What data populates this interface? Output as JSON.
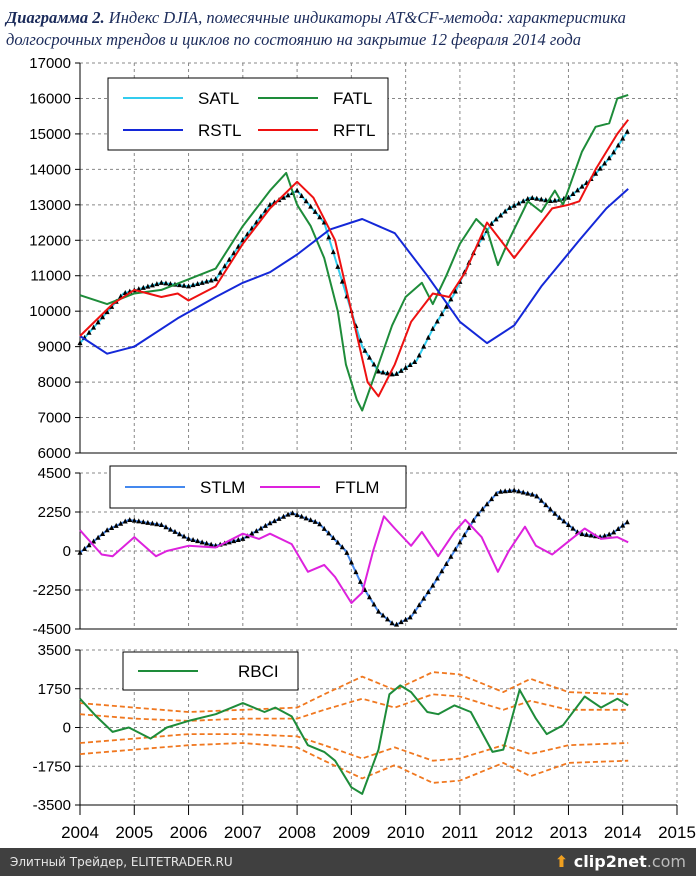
{
  "title": {
    "bold": "Диаграмма 2.",
    "text": " Индекс DJIA, помесячные индикаторы AT&CF-метода: характеристика долгосрочных трендов и циклов по состоянию на закрытие 12 февраля 2014 года"
  },
  "footer": {
    "left": "Элитный Трейдер, ELITETRADER.RU",
    "logo": "clip2net",
    "logo_suffix": ".com"
  },
  "chart_data": [
    {
      "type": "line",
      "xlim": [
        2004,
        2015
      ],
      "ylim": [
        6000,
        17000
      ],
      "yticks": [
        "17000",
        "16000",
        "15000",
        "14000",
        "13000",
        "12000",
        "11000",
        "10000",
        "9000",
        "8000",
        "7000",
        "6000"
      ],
      "grid": true,
      "legend": "top-left",
      "series": [
        {
          "name": "SATL",
          "color": "#33ccee",
          "markers": "triangle",
          "x": [
            2004,
            2004.8,
            2005.5,
            2006,
            2006.5,
            2007,
            2007.5,
            2008,
            2008.5,
            2008.9,
            2009.2,
            2009.5,
            2009.8,
            2010.2,
            2010.5,
            2010.9,
            2011.3,
            2011.6,
            2011.9,
            2012.3,
            2012.7,
            2013,
            2013.4,
            2013.8,
            2014.1
          ],
          "y": [
            9100,
            10500,
            10800,
            10700,
            10900,
            12000,
            13000,
            13400,
            12500,
            10500,
            9000,
            8300,
            8200,
            8600,
            9500,
            10500,
            11800,
            12500,
            12900,
            13200,
            13100,
            13200,
            13700,
            14400,
            15100
          ]
        },
        {
          "name": "FATL",
          "color": "#1e8c3a",
          "x": [
            2004,
            2004.5,
            2005,
            2005.5,
            2006,
            2006.5,
            2007,
            2007.5,
            2007.8,
            2008,
            2008.25,
            2008.5,
            2008.75,
            2008.9,
            2009.1,
            2009.2,
            2009.5,
            2009.75,
            2010,
            2010.3,
            2010.5,
            2010.75,
            2011,
            2011.3,
            2011.5,
            2011.7,
            2011.9,
            2012.25,
            2012.5,
            2012.75,
            2012.9,
            2013.25,
            2013.5,
            2013.75,
            2013.9,
            2014.1
          ],
          "y": [
            10450,
            10200,
            10500,
            10600,
            10900,
            11200,
            12400,
            13400,
            13900,
            13000,
            12400,
            11500,
            10000,
            8500,
            7500,
            7200,
            8500,
            9600,
            10400,
            10800,
            10200,
            11000,
            11900,
            12600,
            12300,
            11300,
            12000,
            13100,
            12800,
            13400,
            13000,
            14500,
            15200,
            15300,
            16000,
            16100
          ]
        },
        {
          "name": "RSTL",
          "color": "#1428d8",
          "x": [
            2004,
            2004.5,
            2005,
            2005.8,
            2006.5,
            2007,
            2007.5,
            2008,
            2008.6,
            2009.2,
            2009.8,
            2010.4,
            2011,
            2011.5,
            2012,
            2012.5,
            2013.2,
            2013.7,
            2014.1
          ],
          "y": [
            9300,
            8800,
            9000,
            9800,
            10400,
            10800,
            11100,
            11600,
            12300,
            12600,
            12200,
            11000,
            9700,
            9100,
            9600,
            10700,
            12000,
            12900,
            13450
          ]
        },
        {
          "name": "RFTL",
          "color": "#ee1111",
          "x": [
            2004,
            2004.6,
            2005,
            2005.5,
            2005.8,
            2006,
            2006.5,
            2007,
            2007.5,
            2008,
            2008.3,
            2008.7,
            2009,
            2009.3,
            2009.5,
            2009.8,
            2010.1,
            2010.5,
            2010.8,
            2011.1,
            2011.5,
            2011.9,
            2012,
            2012.4,
            2012.7,
            2013,
            2013.2,
            2013.5,
            2013.9,
            2014.1
          ],
          "y": [
            9300,
            10200,
            10600,
            10400,
            10500,
            10300,
            10700,
            11900,
            12900,
            13650,
            13200,
            12000,
            10000,
            8000,
            7600,
            8500,
            9700,
            10500,
            10400,
            11100,
            12500,
            11700,
            11500,
            12300,
            12900,
            13000,
            13100,
            14000,
            15000,
            15400
          ]
        }
      ]
    },
    {
      "type": "line",
      "xlim": [
        2004,
        2015
      ],
      "ylim": [
        -4500,
        4500
      ],
      "yticks": [
        "4500",
        "2250",
        "0",
        "-2250",
        "-4500"
      ],
      "grid": true,
      "legend": "top",
      "series": [
        {
          "name": "STLM",
          "color": "#4488ee",
          "markers": "triangle",
          "x": [
            2004,
            2004.5,
            2004.9,
            2005.5,
            2006,
            2006.5,
            2007,
            2007.5,
            2007.9,
            2008.4,
            2008.9,
            2009.2,
            2009.5,
            2009.8,
            2010.1,
            2010.5,
            2010.9,
            2011.3,
            2011.7,
            2012,
            2012.4,
            2012.8,
            2013.2,
            2013.6,
            2013.8,
            2014.1
          ],
          "y": [
            -100,
            1200,
            1800,
            1500,
            700,
            300,
            700,
            1600,
            2200,
            1600,
            0,
            -2000,
            -3500,
            -4300,
            -3800,
            -2000,
            0,
            2000,
            3400,
            3500,
            3200,
            2000,
            1000,
            800,
            1000,
            1700
          ]
        },
        {
          "name": "FTLM",
          "color": "#dd22dd",
          "x": [
            2004,
            2004.4,
            2004.6,
            2005,
            2005.4,
            2005.6,
            2006,
            2006.5,
            2007,
            2007.3,
            2007.5,
            2007.9,
            2008.2,
            2008.5,
            2008.7,
            2009,
            2009.2,
            2009.4,
            2009.6,
            2009.8,
            2010.1,
            2010.3,
            2010.6,
            2010.9,
            2011.1,
            2011.4,
            2011.7,
            2011.9,
            2012.2,
            2012.4,
            2012.7,
            2012.9,
            2013.3,
            2013.6,
            2013.9,
            2014.1
          ],
          "y": [
            1200,
            -200,
            -300,
            800,
            -300,
            0,
            300,
            200,
            1000,
            700,
            1000,
            400,
            -1200,
            -800,
            -1500,
            -3000,
            -2400,
            0,
            2000,
            1300,
            300,
            1100,
            -300,
            1100,
            1800,
            800,
            -1200,
            0,
            1400,
            300,
            -200,
            300,
            1300,
            700,
            800,
            500
          ]
        }
      ]
    },
    {
      "type": "line",
      "xlim": [
        2004,
        2015
      ],
      "ylim": [
        -3500,
        3500
      ],
      "yticks": [
        "3500",
        "1750",
        "0",
        "-1750",
        "-3500"
      ],
      "xticks": [
        "2004",
        "2005",
        "2006",
        "2007",
        "2008",
        "2009",
        "2010",
        "2011",
        "2012",
        "2013",
        "2014",
        "2015"
      ],
      "grid": true,
      "legend": "top",
      "series": [
        {
          "name": "RBCI",
          "color": "#1e8c3a",
          "x": [
            2004,
            2004.3,
            2004.6,
            2004.9,
            2005.3,
            2005.6,
            2006,
            2006.5,
            2007,
            2007.4,
            2007.6,
            2007.9,
            2008.2,
            2008.5,
            2008.7,
            2009,
            2009.2,
            2009.5,
            2009.7,
            2009.9,
            2010.1,
            2010.4,
            2010.6,
            2010.9,
            2011.2,
            2011.6,
            2011.8,
            2012.1,
            2012.4,
            2012.6,
            2012.9,
            2013.3,
            2013.6,
            2013.9,
            2014.1
          ],
          "y": [
            1300,
            500,
            -200,
            0,
            -500,
            0,
            300,
            600,
            1100,
            700,
            900,
            500,
            -800,
            -1100,
            -1500,
            -2700,
            -3000,
            -1000,
            1500,
            1900,
            1600,
            700,
            600,
            1000,
            700,
            -1100,
            -1000,
            1700,
            400,
            -300,
            100,
            1400,
            900,
            1300,
            1000
          ]
        },
        {
          "color": "#f07820",
          "dashed": true,
          "x": [
            2004,
            2005,
            2006,
            2007,
            2008,
            2008.5,
            2009.2,
            2009.8,
            2010.5,
            2011,
            2011.8,
            2012.3,
            2013,
            2014.1
          ],
          "y": [
            1100,
            900,
            700,
            800,
            900,
            1500,
            2300,
            1700,
            2500,
            2400,
            1600,
            2200,
            1600,
            1500
          ]
        },
        {
          "color": "#f07820",
          "dashed": true,
          "x": [
            2004,
            2005,
            2006,
            2007,
            2008,
            2008.5,
            2009.2,
            2009.8,
            2010.5,
            2011,
            2011.8,
            2012.3,
            2013,
            2014.1
          ],
          "y": [
            600,
            400,
            300,
            400,
            400,
            800,
            1300,
            900,
            1500,
            1400,
            800,
            1200,
            800,
            800
          ]
        },
        {
          "color": "#f07820",
          "dashed": true,
          "x": [
            2004,
            2005,
            2006,
            2007,
            2008,
            2008.5,
            2009.2,
            2009.8,
            2010.5,
            2011,
            2011.8,
            2012.3,
            2013,
            2014.1
          ],
          "y": [
            -700,
            -500,
            -300,
            -300,
            -400,
            -800,
            -1400,
            -900,
            -1500,
            -1400,
            -800,
            -1200,
            -800,
            -700
          ]
        },
        {
          "color": "#f07820",
          "dashed": true,
          "x": [
            2004,
            2005,
            2006,
            2007,
            2008,
            2008.5,
            2009.2,
            2009.8,
            2010.5,
            2011,
            2011.8,
            2012.3,
            2013,
            2014.1
          ],
          "y": [
            -1200,
            -1000,
            -800,
            -700,
            -900,
            -1500,
            -2300,
            -1700,
            -2500,
            -2400,
            -1600,
            -2200,
            -1600,
            -1500
          ]
        }
      ]
    }
  ]
}
